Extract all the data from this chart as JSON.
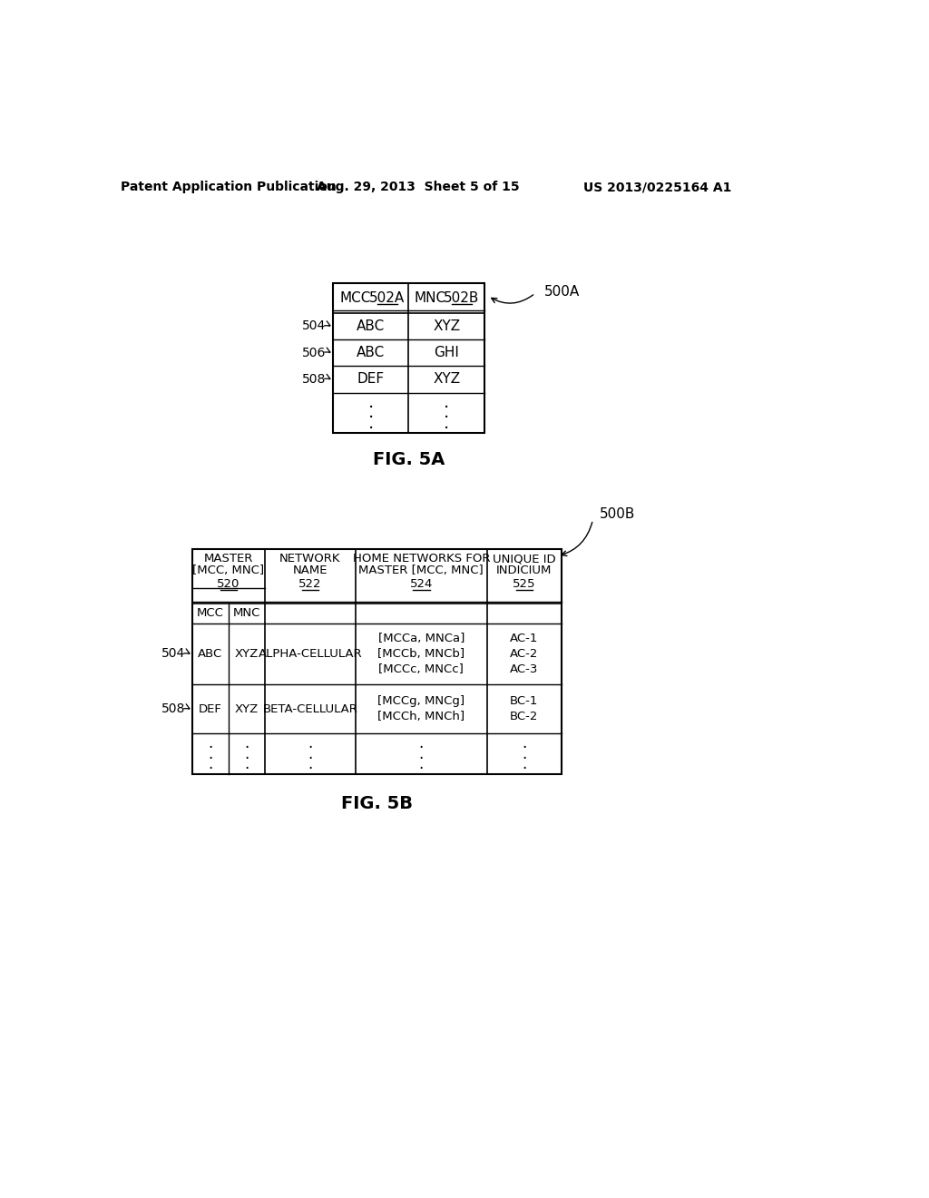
{
  "bg_color": "#ffffff",
  "header_text": {
    "left": "Patent Application Publication",
    "center": "Aug. 29, 2013  Sheet 5 of 15",
    "right": "US 2013/0225164 A1"
  },
  "fig5a": {
    "label": "FIG. 5A",
    "table_label": "500A",
    "col1_label": "MCC",
    "col1_num": "502A",
    "col2_label": "MNC",
    "col2_num": "502B",
    "row_labels": [
      "504",
      "506",
      "508"
    ],
    "rows": [
      [
        "ABC",
        "XYZ"
      ],
      [
        "ABC",
        "GHI"
      ],
      [
        "DEF",
        "XYZ"
      ]
    ]
  },
  "fig5b": {
    "label": "FIG. 5B",
    "table_label": "500B",
    "hdr0_line1": "MASTER",
    "hdr0_line2": "[MCC, MNC]",
    "hdr0_num": "520",
    "hdr1_line1": "NETWORK",
    "hdr1_line2": "NAME",
    "hdr1_num": "522",
    "hdr2_line1": "HOME NETWORKS FOR",
    "hdr2_line2": "MASTER [MCC, MNC]",
    "hdr2_num": "524",
    "hdr3_line1": "UNIQUE ID",
    "hdr3_line2": "INDICIUM",
    "hdr3_num": "525",
    "sub_headers": [
      "MCC",
      "MNC"
    ],
    "row_label_504": "504",
    "row_label_508": "508",
    "row1_mcc": "ABC",
    "row1_mnc": "XYZ",
    "row1_network": "ALPHA-CELLULAR",
    "row1_home_networks": [
      "[MCCa, MNCa]",
      "[MCCb, MNCb]",
      "[MCCc, MNCc]"
    ],
    "row1_unique_ids": [
      "AC-1",
      "AC-2",
      "AC-3"
    ],
    "row2_mcc": "DEF",
    "row2_mnc": "XYZ",
    "row2_network": "BETA-CELLULAR",
    "row2_home_networks": [
      "[MCCg, MNCg]",
      "[MCCh, MNCh]"
    ],
    "row2_unique_ids": [
      "BC-1",
      "BC-2"
    ]
  }
}
